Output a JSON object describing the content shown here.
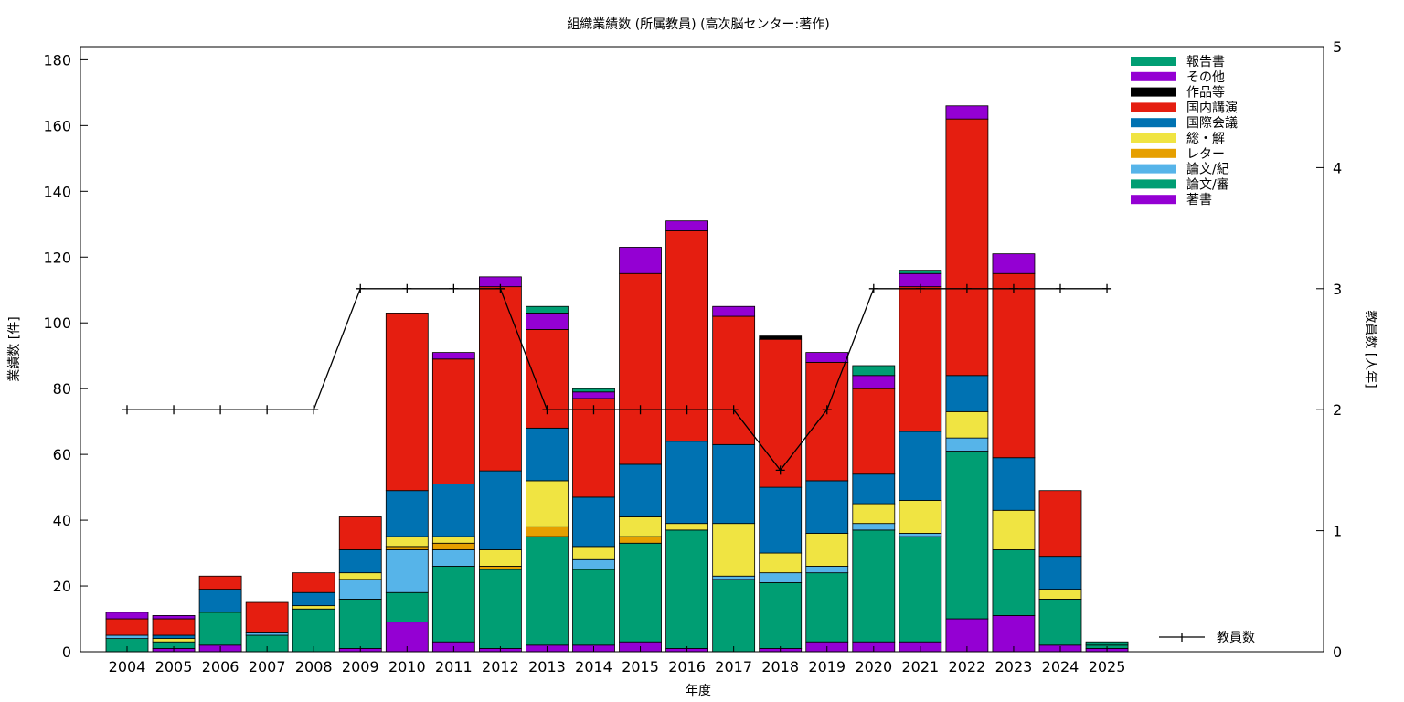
{
  "chart_data": {
    "type": "bar",
    "stacked": true,
    "title": "組織業績数 (所属教員) (高次脳センター:著作)",
    "xlabel": "年度",
    "ylabel": "業績数 [件]",
    "y2label": "教員数 [人年]",
    "ylim": [
      0,
      184
    ],
    "y2lim": [
      0,
      5
    ],
    "yticks": [
      0,
      20,
      40,
      60,
      80,
      100,
      120,
      140,
      160,
      180
    ],
    "y2ticks": [
      0,
      1,
      2,
      3,
      4,
      5
    ],
    "grid": false,
    "legend_position": "top-right",
    "categories": [
      "2004",
      "2005",
      "2006",
      "2007",
      "2008",
      "2009",
      "2010",
      "2011",
      "2012",
      "2013",
      "2014",
      "2015",
      "2016",
      "2017",
      "2018",
      "2019",
      "2020",
      "2021",
      "2022",
      "2023",
      "2024",
      "2025"
    ],
    "series": [
      {
        "name": "著書",
        "color": "#9400d3",
        "values": [
          0,
          1,
          2,
          0,
          0,
          1,
          9,
          3,
          1,
          2,
          2,
          3,
          1,
          0,
          1,
          3,
          3,
          3,
          10,
          11,
          2,
          1
        ]
      },
      {
        "name": "論文/審",
        "color": "#009e73",
        "values": [
          4,
          2,
          10,
          5,
          13,
          15,
          9,
          23,
          24,
          33,
          23,
          30,
          36,
          22,
          20,
          21,
          34,
          32,
          51,
          20,
          14,
          1
        ]
      },
      {
        "name": "論文/紀",
        "color": "#56b4e9",
        "values": [
          1,
          0,
          0,
          1,
          0,
          6,
          13,
          5,
          0,
          0,
          3,
          0,
          0,
          1,
          3,
          2,
          2,
          1,
          4,
          0,
          0,
          0
        ]
      },
      {
        "name": "レター",
        "color": "#e69f00",
        "values": [
          0,
          0,
          0,
          0,
          0,
          0,
          1,
          2,
          1,
          3,
          0,
          2,
          0,
          0,
          0,
          0,
          0,
          0,
          0,
          0,
          0,
          0
        ]
      },
      {
        "name": "総・解",
        "color": "#f0e442",
        "values": [
          0,
          1,
          0,
          0,
          1,
          2,
          3,
          2,
          5,
          14,
          4,
          6,
          2,
          16,
          6,
          10,
          6,
          10,
          8,
          12,
          3,
          0
        ]
      },
      {
        "name": "国際会議",
        "color": "#0072b2",
        "values": [
          0,
          1,
          7,
          0,
          4,
          7,
          14,
          16,
          24,
          16,
          15,
          16,
          25,
          24,
          20,
          16,
          9,
          21,
          11,
          16,
          10,
          0
        ]
      },
      {
        "name": "国内講演",
        "color": "#e51e10",
        "values": [
          5,
          5,
          4,
          9,
          6,
          10,
          54,
          38,
          56,
          30,
          30,
          58,
          64,
          39,
          45,
          36,
          26,
          44,
          78,
          56,
          20,
          0
        ]
      },
      {
        "name": "作品等",
        "color": "#000000",
        "values": [
          0,
          0,
          0,
          0,
          0,
          0,
          0,
          0,
          0,
          0,
          0,
          0,
          0,
          0,
          1,
          0,
          0,
          0,
          0,
          0,
          0,
          0
        ]
      },
      {
        "name": "その他",
        "color": "#9400d3",
        "values": [
          2,
          1,
          0,
          0,
          0,
          0,
          0,
          2,
          3,
          5,
          2,
          8,
          3,
          3,
          0,
          3,
          4,
          4,
          4,
          6,
          0,
          0
        ]
      },
      {
        "name": "報告書",
        "color": "#009e73",
        "values": [
          0,
          0,
          0,
          0,
          0,
          0,
          0,
          0,
          0,
          2,
          1,
          0,
          0,
          0,
          0,
          0,
          3,
          1,
          0,
          0,
          0,
          1
        ]
      }
    ],
    "line": {
      "name": "教員数",
      "axis": "y2",
      "color": "#000000",
      "values": [
        2,
        2,
        2,
        2,
        2,
        3,
        3,
        3,
        3,
        2,
        2,
        2,
        2,
        2,
        1.5,
        2,
        3,
        3,
        3,
        3,
        3,
        3
      ]
    }
  }
}
